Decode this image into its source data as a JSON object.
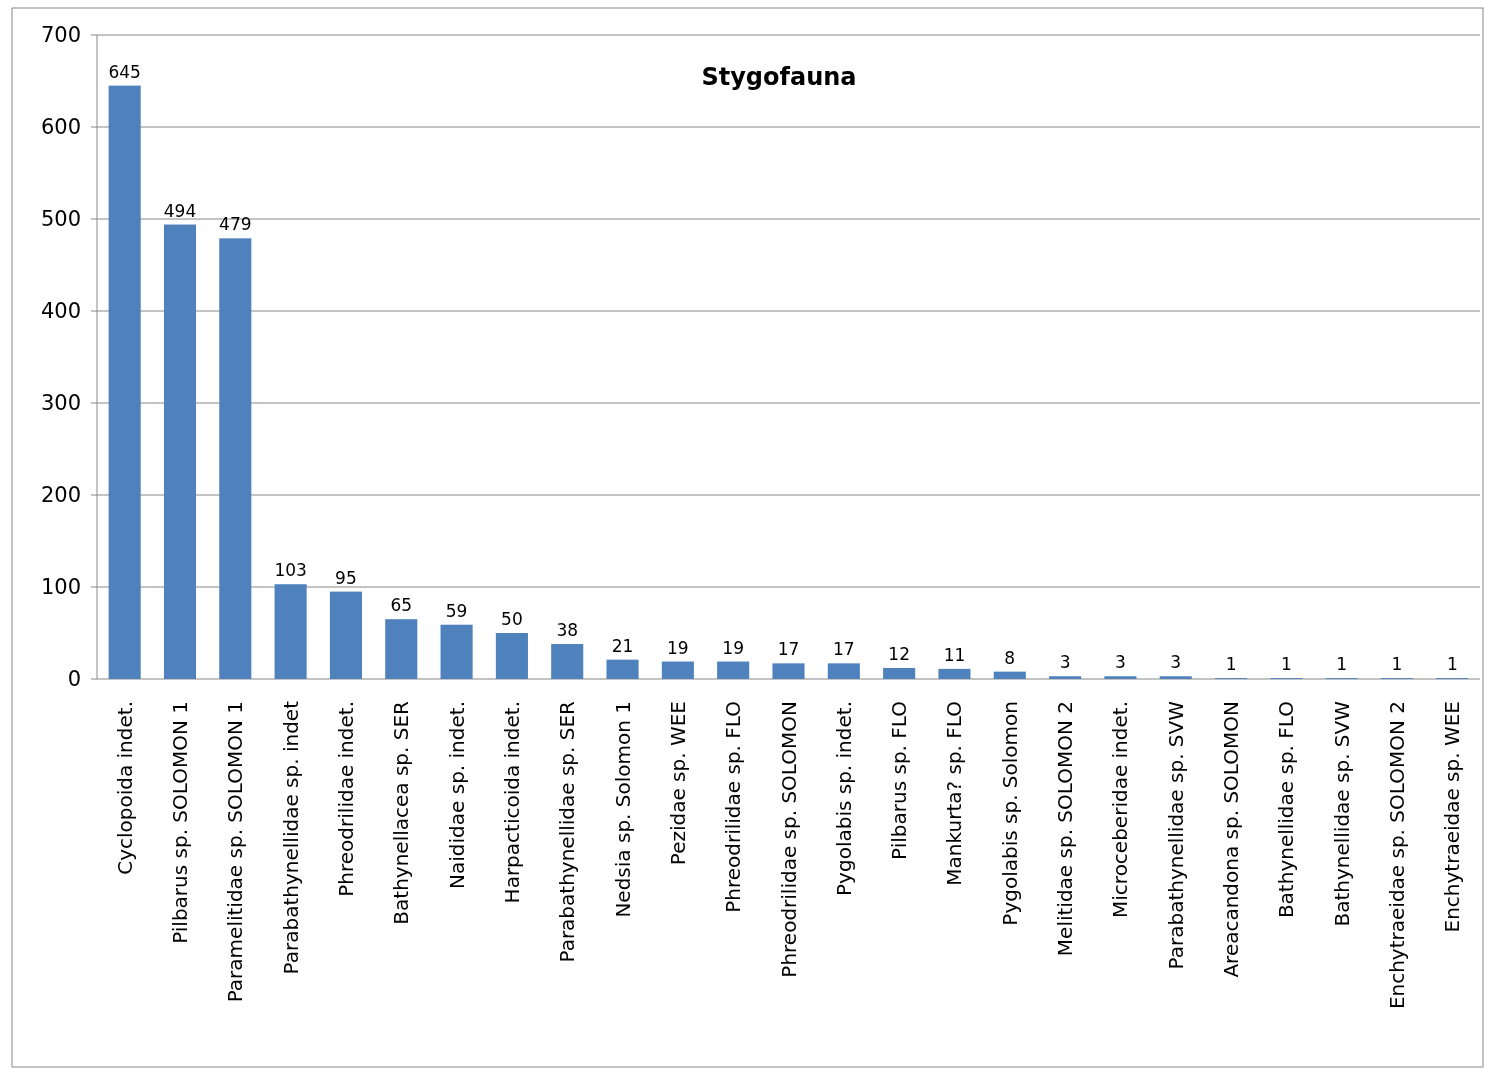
{
  "chart_data": {
    "type": "bar",
    "title": "Stygofauna",
    "categories": [
      "Cyclopoida indet.",
      "Pilbarus sp. SOLOMON 1",
      "Paramelitidae sp. SOLOMON 1",
      "Parabathynellidae sp. indet",
      "Phreodrilidae indet.",
      "Bathynellacea sp. SER",
      "Naididae sp. indet.",
      "Harpacticoida indet.",
      "Parabathynellidae sp. SER",
      "Nedsia sp. Solomon 1",
      "Pezidae sp. WEE",
      "Phreodrilidae sp. FLO",
      "Phreodrilidae sp. SOLOMON",
      "Pygolabis sp. indet.",
      "Pilbarus sp. FLO",
      "Mankurta? sp. FLO",
      "Pygolabis sp. Solomon",
      "Melitidae sp. SOLOMON 2",
      "Microceberidae indet.",
      "Parabathynellidae sp. SVW",
      "Areacandona sp. SOLOMON",
      "Bathynellidae sp. FLO",
      "Bathynellidae sp. SVW",
      "Enchytraeidae sp. SOLOMON 2",
      "Enchytraeidae sp. WEE"
    ],
    "values": [
      645,
      494,
      479,
      103,
      95,
      65,
      59,
      50,
      38,
      21,
      19,
      19,
      17,
      17,
      12,
      11,
      8,
      3,
      3,
      3,
      1,
      1,
      1,
      1,
      1
    ],
    "color": "#4f81bd",
    "ylim": [
      0,
      700
    ],
    "yticks": [
      0,
      100,
      200,
      300,
      400,
      500,
      600,
      700
    ],
    "grid": "y",
    "data_labels": true
  }
}
